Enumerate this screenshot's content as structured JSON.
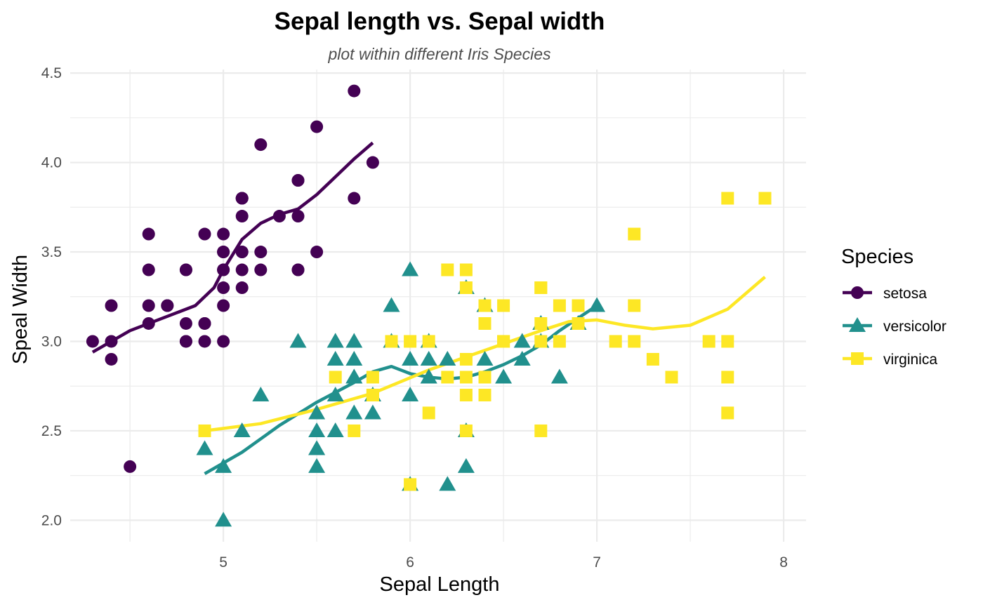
{
  "chart_data": {
    "type": "scatter",
    "title": "Sepal length vs. Sepal width",
    "subtitle": "plot within different Iris Species",
    "xlabel": "Sepal Length",
    "ylabel": "Speal Width",
    "xlim": [
      4.18,
      8.12
    ],
    "ylim": [
      1.88,
      4.52
    ],
    "x_ticks": [
      5,
      6,
      7,
      8
    ],
    "y_ticks": [
      2.0,
      2.5,
      3.0,
      3.5,
      4.0,
      4.5
    ],
    "x_tick_labels": [
      "5",
      "6",
      "7",
      "8"
    ],
    "y_tick_labels": [
      "2.0",
      "2.5",
      "3.0",
      "3.5",
      "4.0",
      "4.5"
    ],
    "grid": true,
    "legend": {
      "title": "Species",
      "position": "right"
    },
    "series": [
      {
        "name": "setosa",
        "color": "#440154",
        "shape": "circle",
        "points": [
          [
            5.1,
            3.5
          ],
          [
            4.9,
            3.0
          ],
          [
            4.7,
            3.2
          ],
          [
            4.6,
            3.1
          ],
          [
            5.0,
            3.6
          ],
          [
            5.4,
            3.9
          ],
          [
            4.6,
            3.4
          ],
          [
            5.0,
            3.4
          ],
          [
            4.4,
            2.9
          ],
          [
            4.9,
            3.1
          ],
          [
            5.4,
            3.7
          ],
          [
            4.8,
            3.4
          ],
          [
            4.8,
            3.0
          ],
          [
            4.3,
            3.0
          ],
          [
            5.8,
            4.0
          ],
          [
            5.7,
            4.4
          ],
          [
            5.4,
            3.9
          ],
          [
            5.1,
            3.5
          ],
          [
            5.7,
            3.8
          ],
          [
            5.1,
            3.8
          ],
          [
            5.4,
            3.4
          ],
          [
            5.1,
            3.7
          ],
          [
            4.6,
            3.6
          ],
          [
            5.1,
            3.3
          ],
          [
            4.8,
            3.4
          ],
          [
            5.0,
            3.0
          ],
          [
            5.0,
            3.4
          ],
          [
            5.2,
            3.5
          ],
          [
            5.2,
            3.4
          ],
          [
            4.7,
            3.2
          ],
          [
            4.8,
            3.1
          ],
          [
            5.4,
            3.4
          ],
          [
            5.2,
            4.1
          ],
          [
            5.5,
            4.2
          ],
          [
            4.9,
            3.1
          ],
          [
            5.0,
            3.2
          ],
          [
            5.5,
            3.5
          ],
          [
            4.9,
            3.6
          ],
          [
            4.4,
            3.0
          ],
          [
            5.1,
            3.4
          ],
          [
            5.0,
            3.5
          ],
          [
            4.5,
            2.3
          ],
          [
            4.4,
            3.2
          ],
          [
            5.0,
            3.5
          ],
          [
            5.1,
            3.8
          ],
          [
            4.8,
            3.0
          ],
          [
            5.1,
            3.8
          ],
          [
            4.6,
            3.2
          ],
          [
            5.3,
            3.7
          ],
          [
            5.0,
            3.3
          ]
        ],
        "smooth": [
          [
            4.3,
            2.94
          ],
          [
            4.5,
            3.06
          ],
          [
            4.7,
            3.14
          ],
          [
            4.85,
            3.2
          ],
          [
            4.95,
            3.3
          ],
          [
            5.0,
            3.4
          ],
          [
            5.1,
            3.57
          ],
          [
            5.2,
            3.66
          ],
          [
            5.3,
            3.71
          ],
          [
            5.4,
            3.74
          ],
          [
            5.5,
            3.82
          ],
          [
            5.6,
            3.92
          ],
          [
            5.7,
            4.02
          ],
          [
            5.8,
            4.11
          ]
        ]
      },
      {
        "name": "versicolor",
        "color": "#21908d",
        "shape": "triangle",
        "points": [
          [
            7.0,
            3.2
          ],
          [
            6.4,
            3.2
          ],
          [
            6.9,
            3.1
          ],
          [
            5.5,
            2.3
          ],
          [
            6.5,
            2.8
          ],
          [
            5.7,
            2.8
          ],
          [
            6.3,
            3.3
          ],
          [
            4.9,
            2.4
          ],
          [
            6.6,
            2.9
          ],
          [
            5.2,
            2.7
          ],
          [
            5.0,
            2.0
          ],
          [
            5.9,
            3.0
          ],
          [
            6.0,
            2.2
          ],
          [
            6.1,
            2.9
          ],
          [
            5.6,
            2.9
          ],
          [
            6.7,
            3.1
          ],
          [
            5.6,
            3.0
          ],
          [
            5.8,
            2.7
          ],
          [
            6.2,
            2.2
          ],
          [
            5.6,
            2.5
          ],
          [
            5.9,
            3.2
          ],
          [
            6.1,
            2.8
          ],
          [
            6.3,
            2.5
          ],
          [
            6.1,
            2.8
          ],
          [
            6.4,
            2.9
          ],
          [
            6.6,
            3.0
          ],
          [
            6.8,
            2.8
          ],
          [
            6.7,
            3.0
          ],
          [
            6.0,
            2.9
          ],
          [
            5.7,
            2.6
          ],
          [
            5.5,
            2.4
          ],
          [
            5.5,
            2.4
          ],
          [
            5.8,
            2.7
          ],
          [
            6.0,
            2.7
          ],
          [
            5.4,
            3.0
          ],
          [
            6.0,
            3.4
          ],
          [
            6.7,
            3.1
          ],
          [
            6.3,
            2.3
          ],
          [
            5.6,
            3.0
          ],
          [
            5.5,
            2.5
          ],
          [
            5.5,
            2.6
          ],
          [
            6.1,
            3.0
          ],
          [
            5.8,
            2.6
          ],
          [
            5.0,
            2.3
          ],
          [
            5.6,
            2.7
          ],
          [
            5.7,
            3.0
          ],
          [
            5.7,
            2.9
          ],
          [
            6.2,
            2.9
          ],
          [
            5.1,
            2.5
          ],
          [
            5.7,
            2.8
          ]
        ],
        "smooth": [
          [
            4.9,
            2.26
          ],
          [
            5.1,
            2.38
          ],
          [
            5.3,
            2.53
          ],
          [
            5.5,
            2.66
          ],
          [
            5.7,
            2.77
          ],
          [
            5.8,
            2.83
          ],
          [
            5.9,
            2.86
          ],
          [
            6.0,
            2.82
          ],
          [
            6.1,
            2.8
          ],
          [
            6.2,
            2.79
          ],
          [
            6.3,
            2.8
          ],
          [
            6.4,
            2.83
          ],
          [
            6.5,
            2.87
          ],
          [
            6.6,
            2.92
          ],
          [
            6.7,
            2.98
          ],
          [
            6.8,
            3.06
          ],
          [
            6.9,
            3.13
          ],
          [
            7.0,
            3.2
          ]
        ]
      },
      {
        "name": "virginica",
        "color": "#fde725",
        "shape": "square",
        "points": [
          [
            6.3,
            3.3
          ],
          [
            5.8,
            2.7
          ],
          [
            7.1,
            3.0
          ],
          [
            6.3,
            2.9
          ],
          [
            6.5,
            3.0
          ],
          [
            7.6,
            3.0
          ],
          [
            4.9,
            2.5
          ],
          [
            7.3,
            2.9
          ],
          [
            6.7,
            2.5
          ],
          [
            7.2,
            3.6
          ],
          [
            6.5,
            3.2
          ],
          [
            6.4,
            2.7
          ],
          [
            6.8,
            3.0
          ],
          [
            5.7,
            2.5
          ],
          [
            5.8,
            2.8
          ],
          [
            6.4,
            3.2
          ],
          [
            6.5,
            3.0
          ],
          [
            7.7,
            3.8
          ],
          [
            7.7,
            2.6
          ],
          [
            6.0,
            2.2
          ],
          [
            6.9,
            3.2
          ],
          [
            5.6,
            2.8
          ],
          [
            7.7,
            2.8
          ],
          [
            6.3,
            2.7
          ],
          [
            6.7,
            3.3
          ],
          [
            7.2,
            3.2
          ],
          [
            6.2,
            2.8
          ],
          [
            6.1,
            3.0
          ],
          [
            6.4,
            2.8
          ],
          [
            7.2,
            3.0
          ],
          [
            7.4,
            2.8
          ],
          [
            7.9,
            3.8
          ],
          [
            6.4,
            2.8
          ],
          [
            6.3,
            2.8
          ],
          [
            6.1,
            2.6
          ],
          [
            7.7,
            3.0
          ],
          [
            6.3,
            3.4
          ],
          [
            6.4,
            3.1
          ],
          [
            6.0,
            3.0
          ],
          [
            6.9,
            3.1
          ],
          [
            6.7,
            3.1
          ],
          [
            6.9,
            3.1
          ],
          [
            5.8,
            2.7
          ],
          [
            6.8,
            3.2
          ],
          [
            6.7,
            3.3
          ],
          [
            6.7,
            3.0
          ],
          [
            6.3,
            2.5
          ],
          [
            6.5,
            3.0
          ],
          [
            6.2,
            3.4
          ],
          [
            5.9,
            3.0
          ]
        ],
        "smooth": [
          [
            4.9,
            2.5
          ],
          [
            5.2,
            2.54
          ],
          [
            5.5,
            2.62
          ],
          [
            5.8,
            2.71
          ],
          [
            6.1,
            2.84
          ],
          [
            6.4,
            2.95
          ],
          [
            6.7,
            3.06
          ],
          [
            6.85,
            3.11
          ],
          [
            7.0,
            3.12
          ],
          [
            7.15,
            3.09
          ],
          [
            7.3,
            3.07
          ],
          [
            7.5,
            3.09
          ],
          [
            7.7,
            3.18
          ],
          [
            7.9,
            3.36
          ]
        ]
      }
    ]
  }
}
